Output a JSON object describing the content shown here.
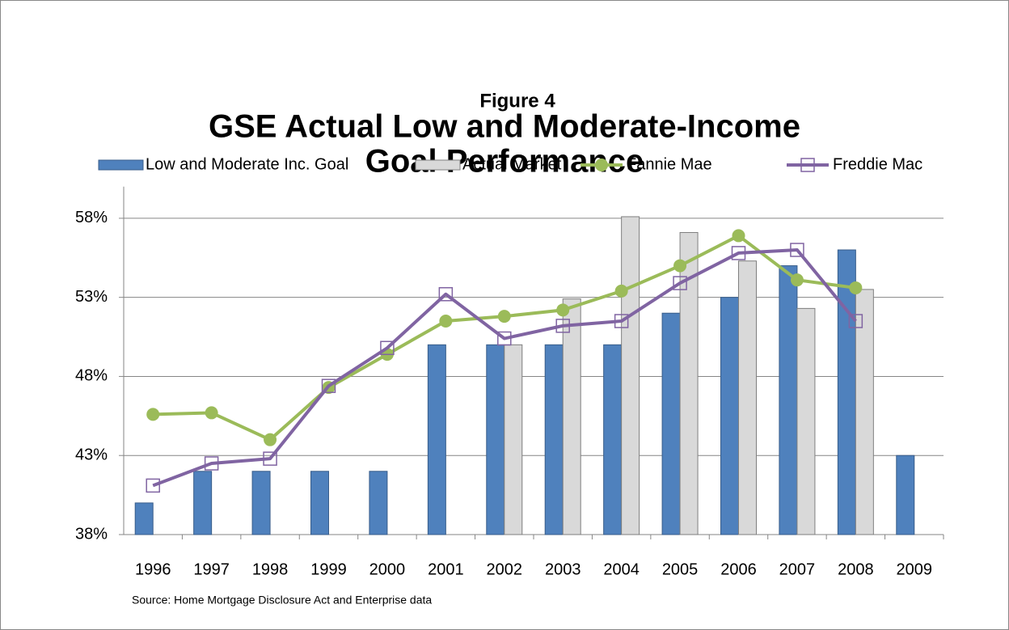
{
  "chart_data": {
    "type": "bar_line",
    "figure_label": "Figure 4",
    "title": [
      "GSE Actual Low and Moderate-Income",
      "Goal Performance"
    ],
    "source": "Source: Home Mortgage Disclosure Act and Enterprise data",
    "categories": [
      "1996",
      "1997",
      "1998",
      "1999",
      "2000",
      "2001",
      "2002",
      "2003",
      "2004",
      "2005",
      "2006",
      "2007",
      "2008",
      "2009"
    ],
    "series": [
      {
        "name": "Low and Moderate Inc. Goal",
        "kind": "bar",
        "color": "#4f81bd",
        "values": [
          40,
          42,
          42,
          42,
          42,
          50,
          50,
          50,
          50,
          52,
          53,
          55,
          56,
          43
        ]
      },
      {
        "name": "Actual Market",
        "kind": "bar",
        "color": "#d9d9d9",
        "values": [
          null,
          null,
          null,
          null,
          null,
          null,
          50,
          52.9,
          58.1,
          57.1,
          55.3,
          52.3,
          53.5,
          null
        ]
      },
      {
        "name": "Fannie Mae",
        "kind": "line",
        "marker": "circle",
        "color": "#9bbb59",
        "values": [
          45.6,
          45.7,
          44.0,
          47.3,
          49.4,
          51.5,
          51.8,
          52.2,
          53.4,
          55.0,
          56.9,
          54.1,
          53.6,
          null
        ]
      },
      {
        "name": "Freddie Mac",
        "kind": "line",
        "marker": "square",
        "color": "#8064a2",
        "values": [
          41.1,
          42.5,
          42.8,
          47.4,
          49.8,
          53.2,
          50.4,
          51.2,
          51.5,
          53.9,
          55.8,
          56.0,
          51.5,
          null
        ]
      }
    ],
    "ylim": [
      38,
      60
    ],
    "yticks": [
      {
        "value": 38,
        "label": "38%"
      },
      {
        "value": 43,
        "label": "43%"
      },
      {
        "value": 48,
        "label": "48%"
      },
      {
        "value": 53,
        "label": "53%"
      },
      {
        "value": 58,
        "label": "58%"
      }
    ],
    "grid": true
  }
}
